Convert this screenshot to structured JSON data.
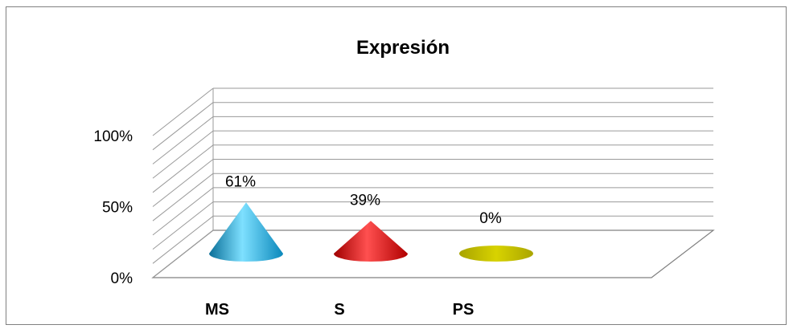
{
  "chart_data": {
    "type": "bar",
    "title": "Expresión",
    "categories": [
      "MS",
      "S",
      "PS"
    ],
    "values": [
      61,
      39,
      0
    ],
    "data_labels": [
      "61%",
      "39%",
      "0%"
    ],
    "colors": [
      "#1ab0e0",
      "#e81010",
      "#c9c400"
    ],
    "y_ticks": [
      "0%",
      "50%",
      "100%"
    ],
    "ylim": [
      0,
      100
    ],
    "xlabel": "",
    "ylabel": "",
    "grid": true,
    "legend": "none",
    "mark_shape": "cone"
  }
}
